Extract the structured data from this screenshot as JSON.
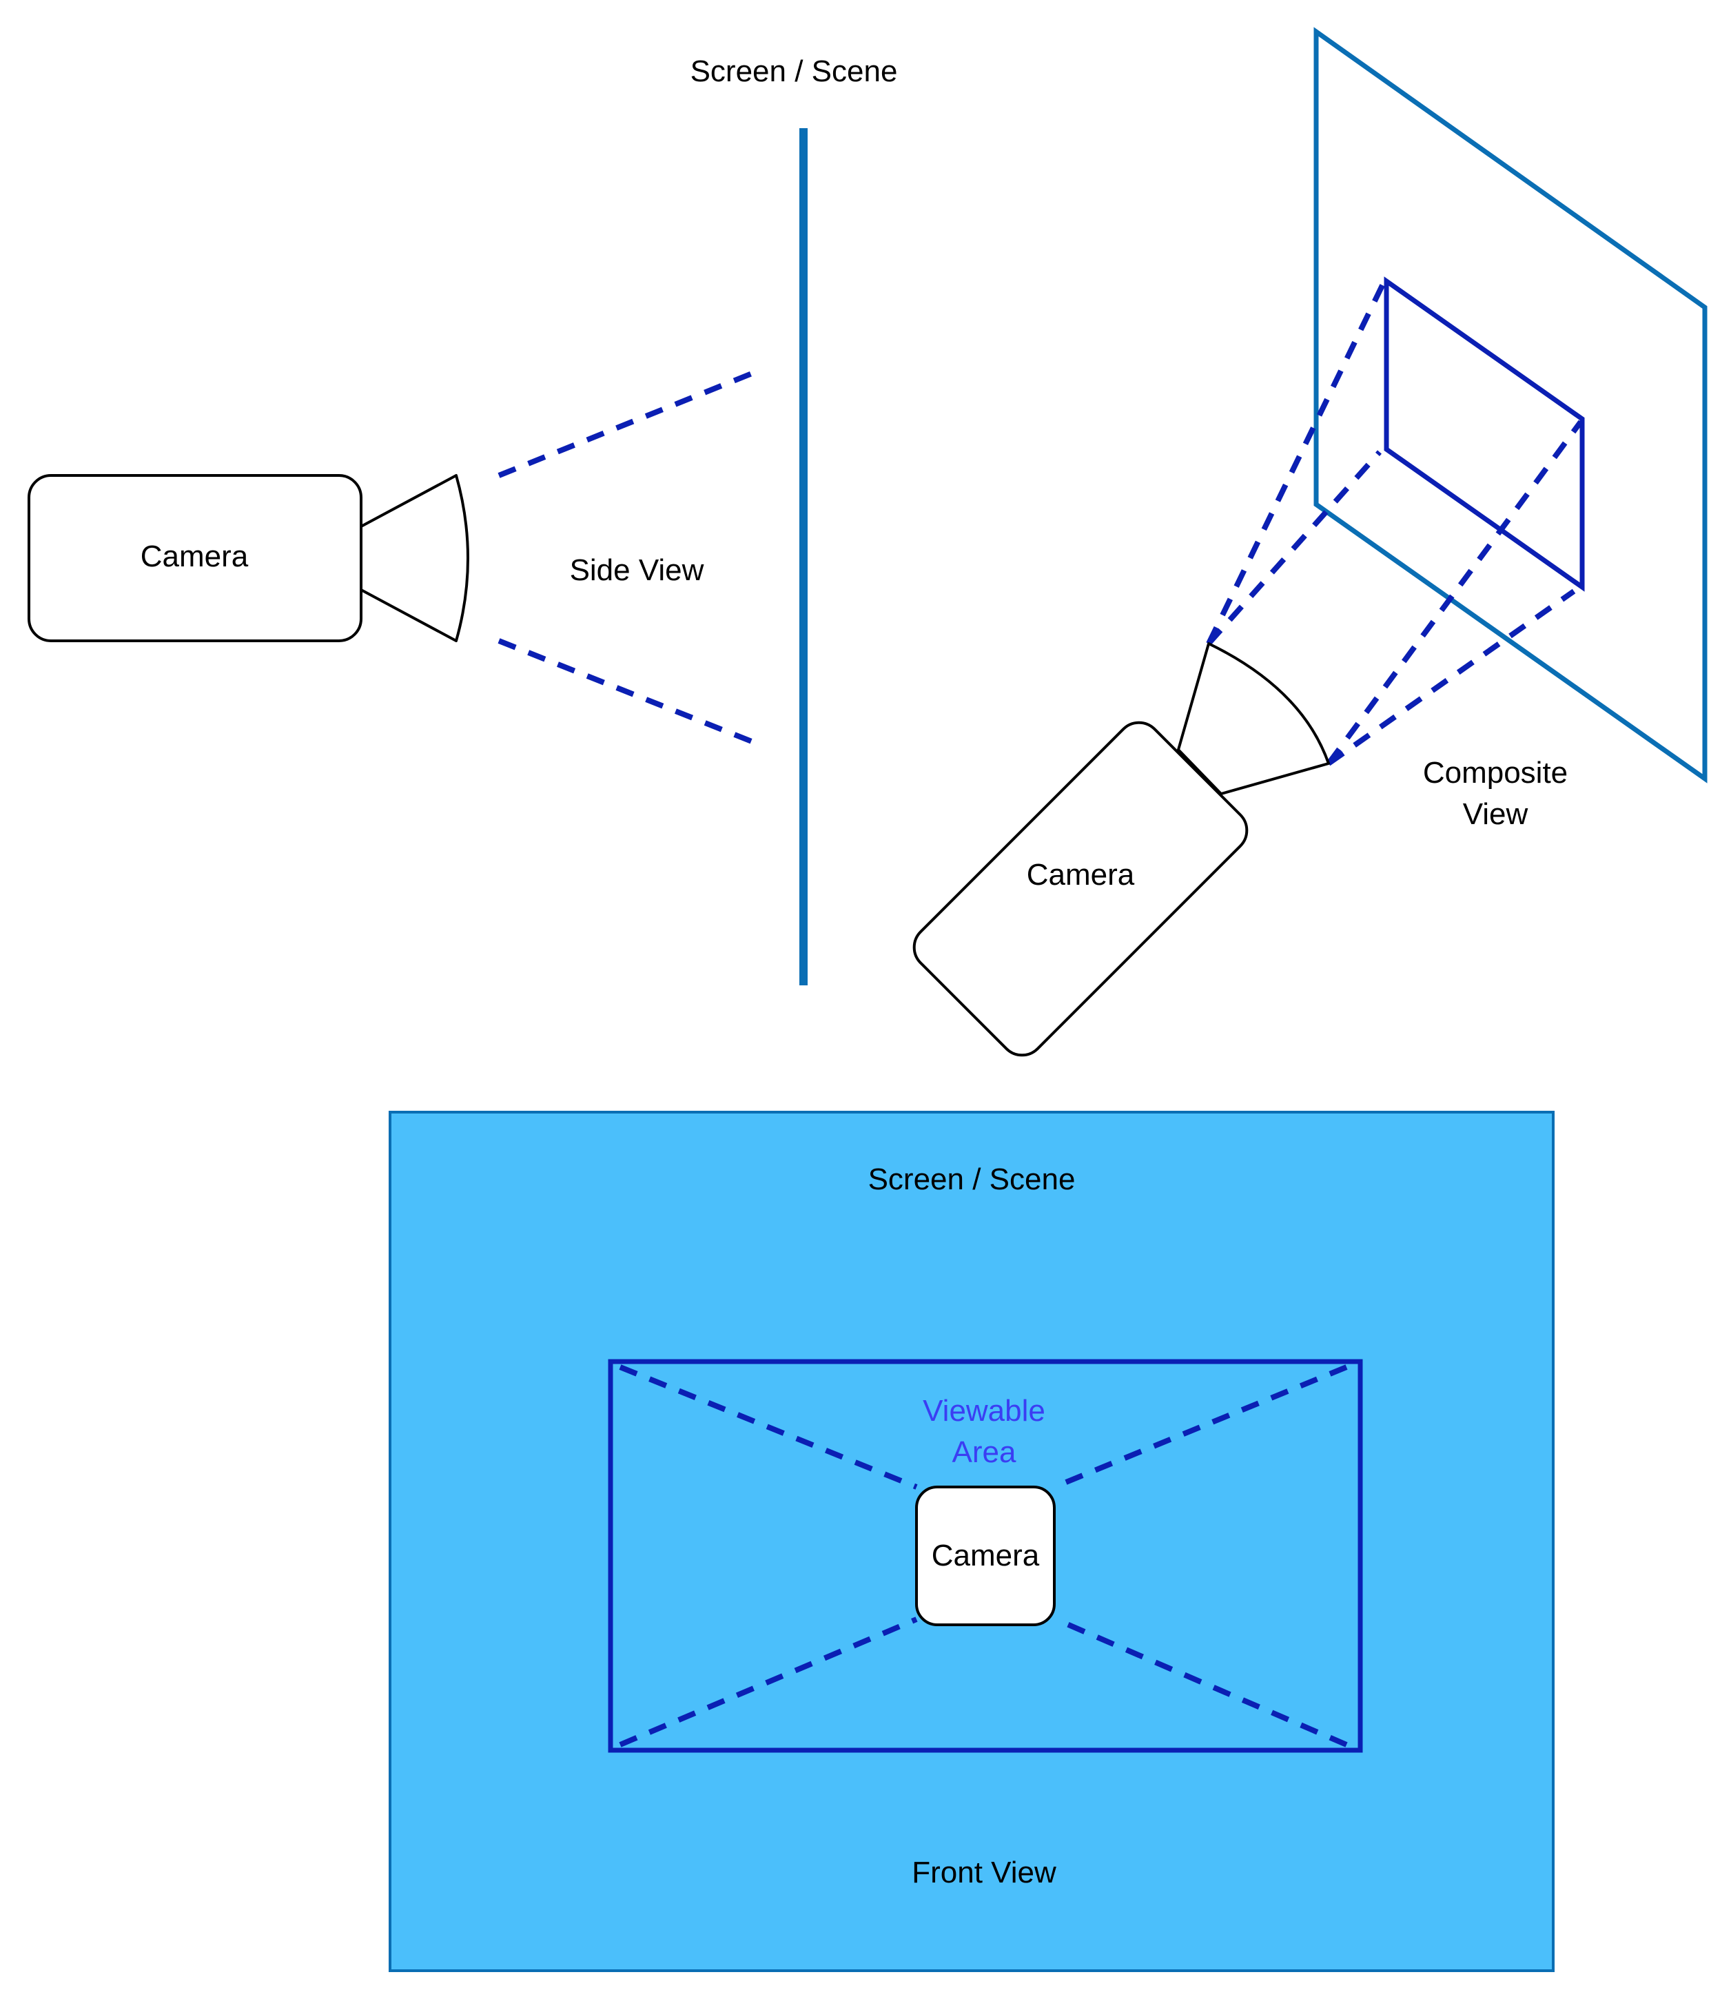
{
  "side_view": {
    "screen_label": "Screen / Scene",
    "camera_label": "Camera",
    "view_label": "Side View"
  },
  "composite_view": {
    "camera_label": "Camera",
    "view_label_line1": "Composite",
    "view_label_line2": "View"
  },
  "front_view": {
    "screen_label": "Screen / Scene",
    "viewable_line1": "Viewable",
    "viewable_line2": "Area",
    "camera_label": "Camera",
    "view_label": "Front View"
  },
  "colors": {
    "screen_line": "#0a6eb4",
    "viewable_frame": "#0b1fb3",
    "frustum_dash": "#0b1fb3",
    "scene_fill": "#4bbffb",
    "viewable_text": "#3b3ef2",
    "camera_stroke": "#000000"
  }
}
